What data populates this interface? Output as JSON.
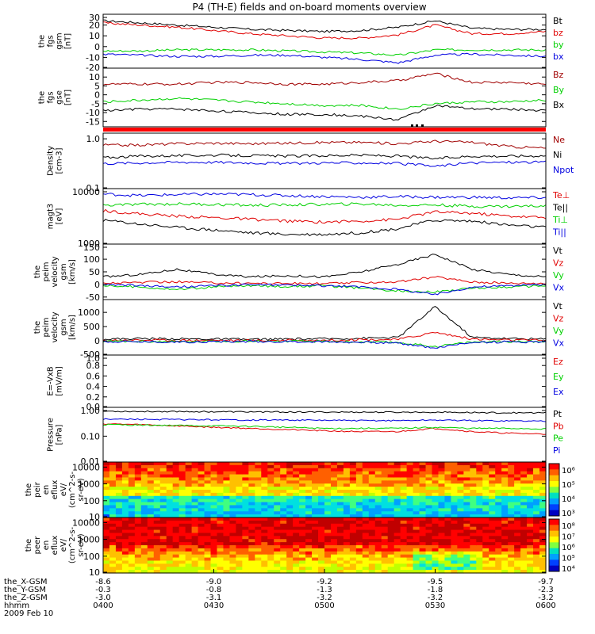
{
  "page": {
    "title": "P4 (TH-E) fields and on-board moments overview"
  },
  "colors": {
    "black": "#000000",
    "red": "#e00000",
    "green": "#00d000",
    "blue": "#0000e0",
    "darkred": "#a00000",
    "lightgreen": "#30e030",
    "panelBar": "#ff0000"
  },
  "chart_data": [
    {
      "type": "line",
      "panel": 1,
      "ylabel": [
        "the",
        "fgs",
        "gsm",
        "[nT]"
      ],
      "ylim": [
        -20,
        30
      ],
      "yticks": [
        "30",
        "20",
        "10",
        "0",
        "-10",
        "-20"
      ],
      "series": [
        {
          "name": "Bt",
          "color": "black",
          "x": [
            0,
            10,
            20,
            30,
            40,
            50,
            60,
            70,
            80,
            90,
            100,
            110,
            120
          ],
          "values": [
            24,
            22,
            20,
            18,
            16,
            15,
            14,
            15,
            18,
            24,
            17,
            16,
            16
          ]
        },
        {
          "name": "bz",
          "color": "red",
          "x": [
            0,
            10,
            20,
            30,
            40,
            50,
            60,
            70,
            80,
            90,
            100,
            110,
            120
          ],
          "values": [
            22,
            20,
            18,
            15,
            12,
            10,
            8,
            8,
            11,
            20,
            12,
            12,
            14
          ]
        },
        {
          "name": "by",
          "color": "green",
          "x": [
            0,
            10,
            20,
            30,
            40,
            50,
            60,
            70,
            80,
            90,
            100,
            110,
            120
          ],
          "values": [
            -4,
            -4,
            -3,
            -3,
            -3,
            -4,
            -5,
            -6,
            -8,
            -3,
            -3,
            -3,
            -3
          ]
        },
        {
          "name": "bx",
          "color": "blue",
          "x": [
            0,
            10,
            20,
            30,
            40,
            50,
            60,
            70,
            80,
            90,
            100,
            110,
            120
          ],
          "values": [
            -7,
            -8,
            -9,
            -9,
            -8,
            -8,
            -10,
            -12,
            -15,
            -8,
            -7,
            -8,
            -9
          ]
        }
      ]
    },
    {
      "type": "line",
      "panel": 2,
      "ylabel": [
        "the",
        "fgs",
        "gse",
        "[nT]"
      ],
      "ylim": [
        -18,
        15
      ],
      "yticks": [
        "10",
        "5",
        "0",
        "-5",
        "-10",
        "-15"
      ],
      "series": [
        {
          "name": "Bz",
          "color": "darkred",
          "x": [
            0,
            10,
            20,
            30,
            40,
            50,
            60,
            70,
            80,
            90,
            100,
            110,
            120
          ],
          "values": [
            6,
            6,
            6,
            7,
            7,
            6,
            6,
            7,
            8,
            12,
            7,
            7,
            6
          ]
        },
        {
          "name": "By",
          "color": "green",
          "x": [
            0,
            10,
            20,
            30,
            40,
            50,
            60,
            70,
            80,
            90,
            100,
            110,
            120
          ],
          "values": [
            -4,
            -3,
            -2,
            -3,
            -4,
            -5,
            -6,
            -6,
            -8,
            -5,
            -4,
            -4,
            -3
          ]
        },
        {
          "name": "Bx",
          "color": "black",
          "x": [
            0,
            10,
            20,
            30,
            40,
            50,
            60,
            70,
            80,
            90,
            100,
            110,
            120
          ],
          "values": [
            -9,
            -8,
            -8,
            -9,
            -10,
            -11,
            -11,
            -12,
            -14,
            -6,
            -8,
            -8,
            -9
          ]
        }
      ]
    },
    {
      "type": "line",
      "panel": 3,
      "ylabel": [
        "Density",
        "[cm-3]"
      ],
      "ylog": true,
      "ylim": [
        0.1,
        1.3
      ],
      "yticks": [
        "1.0",
        "0.1"
      ],
      "series": [
        {
          "name": "Ne",
          "color": "darkred",
          "x": [
            0,
            10,
            20,
            30,
            40,
            50,
            60,
            70,
            80,
            90,
            100,
            110,
            120
          ],
          "values": [
            0.75,
            0.75,
            0.8,
            0.82,
            0.8,
            0.82,
            0.85,
            0.85,
            0.8,
            0.9,
            0.85,
            0.7,
            0.65
          ]
        },
        {
          "name": "Ni",
          "color": "black",
          "x": [
            0,
            10,
            20,
            30,
            40,
            50,
            60,
            70,
            80,
            90,
            100,
            110,
            120
          ],
          "values": [
            0.42,
            0.45,
            0.46,
            0.47,
            0.46,
            0.45,
            0.46,
            0.47,
            0.45,
            0.4,
            0.45,
            0.45,
            0.46
          ]
        },
        {
          "name": "Npot",
          "color": "blue",
          "x": [
            0,
            10,
            20,
            30,
            40,
            50,
            60,
            70,
            80,
            90,
            100,
            110,
            120
          ],
          "values": [
            0.32,
            0.33,
            0.34,
            0.34,
            0.33,
            0.32,
            0.33,
            0.33,
            0.32,
            0.28,
            0.33,
            0.34,
            0.34
          ]
        }
      ]
    },
    {
      "type": "line",
      "panel": 4,
      "ylabel": [
        "magt3",
        "[eV]"
      ],
      "ylog": true,
      "ylim": [
        1000,
        10000
      ],
      "yticks": [
        "10000",
        "1000"
      ],
      "legend_entries": [
        "Te⊥",
        "Te||",
        "Ti⊥",
        "Ti||"
      ],
      "series": [
        {
          "name": "Ti||",
          "color": "blue",
          "x": [
            0,
            10,
            20,
            30,
            40,
            50,
            60,
            70,
            80,
            90,
            100,
            110,
            120
          ],
          "values": [
            8000,
            7500,
            7800,
            8000,
            7800,
            7500,
            7200,
            7000,
            7200,
            7000,
            7000,
            6800,
            6900
          ]
        },
        {
          "name": "Ti⊥",
          "color": "green",
          "x": [
            0,
            10,
            20,
            30,
            40,
            50,
            60,
            70,
            80,
            90,
            100,
            110,
            120
          ],
          "values": [
            5000,
            5200,
            5300,
            5200,
            5000,
            5100,
            5200,
            5300,
            5000,
            5100,
            4800,
            4800,
            4900
          ]
        },
        {
          "name": "Te⊥",
          "color": "red",
          "x": [
            0,
            10,
            20,
            30,
            40,
            50,
            60,
            70,
            80,
            90,
            100,
            110,
            120
          ],
          "values": [
            4000,
            3500,
            3200,
            3000,
            2800,
            2600,
            2500,
            2600,
            2800,
            3800,
            3600,
            3200,
            3000
          ]
        },
        {
          "name": "Te||",
          "color": "black",
          "x": [
            0,
            10,
            20,
            30,
            40,
            50,
            60,
            70,
            80,
            90,
            100,
            110,
            120
          ],
          "values": [
            2700,
            2300,
            2000,
            1800,
            1600,
            1500,
            1500,
            1600,
            1900,
            2700,
            2600,
            2200,
            2000
          ]
        }
      ]
    },
    {
      "type": "line",
      "panel": 5,
      "ylabel": [
        "the",
        "peim",
        "velocity",
        "gsm",
        "[km/s]"
      ],
      "ylim": [
        -60,
        160
      ],
      "yticks": [
        "150",
        "100",
        "50",
        "0",
        "-50"
      ],
      "series": [
        {
          "name": "Vt",
          "color": "black",
          "x": [
            0,
            10,
            20,
            30,
            40,
            50,
            60,
            70,
            80,
            90,
            100,
            110,
            120
          ],
          "values": [
            30,
            40,
            60,
            40,
            30,
            35,
            30,
            50,
            80,
            120,
            60,
            40,
            30
          ]
        },
        {
          "name": "Vz",
          "color": "red",
          "x": [
            0,
            10,
            20,
            30,
            40,
            50,
            60,
            70,
            80,
            90,
            100,
            110,
            120
          ],
          "values": [
            5,
            8,
            10,
            6,
            5,
            4,
            3,
            8,
            10,
            30,
            10,
            5,
            5
          ]
        },
        {
          "name": "Vy",
          "color": "green",
          "x": [
            0,
            10,
            20,
            30,
            40,
            50,
            60,
            70,
            80,
            90,
            100,
            110,
            120
          ],
          "values": [
            -5,
            -10,
            -20,
            -10,
            -5,
            -8,
            -5,
            -15,
            -25,
            -30,
            -15,
            -10,
            -5
          ]
        },
        {
          "name": "Vx",
          "color": "blue",
          "x": [
            0,
            10,
            20,
            30,
            40,
            50,
            60,
            70,
            80,
            90,
            100,
            110,
            120
          ],
          "values": [
            0,
            -5,
            -10,
            -5,
            0,
            -3,
            -5,
            -10,
            -20,
            -40,
            -10,
            -5,
            0
          ]
        }
      ]
    },
    {
      "type": "line",
      "panel": 6,
      "ylabel": [
        "the",
        "peim",
        "velocity",
        "gsm",
        "[km/s]"
      ],
      "ylim": [
        -500,
        1450
      ],
      "yticks": [
        "1000",
        "500",
        "0",
        "-500"
      ],
      "series": [
        {
          "name": "Vt",
          "color": "black",
          "x": [
            0,
            10,
            20,
            30,
            40,
            50,
            60,
            70,
            80,
            90,
            100,
            110,
            120
          ],
          "values": [
            60,
            80,
            70,
            60,
            50,
            60,
            70,
            90,
            120,
            1200,
            120,
            80,
            60
          ]
        },
        {
          "name": "Vz",
          "color": "red",
          "x": [
            0,
            10,
            20,
            30,
            40,
            50,
            60,
            70,
            80,
            90,
            100,
            110,
            120
          ],
          "values": [
            20,
            30,
            20,
            20,
            10,
            20,
            20,
            40,
            50,
            300,
            60,
            30,
            20
          ]
        },
        {
          "name": "Vy",
          "color": "green",
          "x": [
            0,
            10,
            20,
            30,
            40,
            50,
            60,
            70,
            80,
            90,
            100,
            110,
            120
          ],
          "values": [
            -10,
            -20,
            -30,
            -20,
            -10,
            -20,
            -20,
            -40,
            -60,
            -200,
            -40,
            -30,
            -20
          ]
        },
        {
          "name": "Vx",
          "color": "blue",
          "x": [
            0,
            10,
            20,
            30,
            40,
            50,
            60,
            70,
            80,
            90,
            100,
            110,
            120
          ],
          "values": [
            -20,
            -30,
            -40,
            -30,
            -20,
            -30,
            -30,
            -50,
            -80,
            -250,
            -50,
            -40,
            -30
          ]
        }
      ]
    },
    {
      "type": "line",
      "panel": 7,
      "ylabel": [
        "E=-VxB",
        "[mV/m]"
      ],
      "ylim": [
        0,
        1
      ],
      "yticks": [
        "1.0",
        "0.8",
        "0.6",
        "0.4",
        "0.2",
        "0.0"
      ],
      "series": [
        {
          "name": "Ez",
          "color": "red",
          "values": []
        },
        {
          "name": "Ey",
          "color": "green",
          "values": []
        },
        {
          "name": "Ex",
          "color": "blue",
          "values": []
        }
      ]
    },
    {
      "type": "line",
      "panel": 8,
      "ylabel": [
        "Pressure",
        "[nPa]"
      ],
      "ylog": true,
      "ylim": [
        0.01,
        1.3
      ],
      "yticks": [
        "1.00",
        "0.10",
        "0.01"
      ],
      "series": [
        {
          "name": "Pt",
          "color": "black",
          "x": [
            0,
            10,
            20,
            30,
            40,
            50,
            60,
            70,
            80,
            90,
            100,
            110,
            120
          ],
          "values": [
            0.92,
            0.9,
            0.9,
            0.88,
            0.87,
            0.86,
            0.85,
            0.85,
            0.84,
            0.85,
            0.82,
            0.8,
            0.8
          ]
        },
        {
          "name": "Pb",
          "color": "red",
          "x": [
            0,
            10,
            20,
            30,
            40,
            50,
            60,
            70,
            80,
            90,
            100,
            110,
            120
          ],
          "values": [
            0.3,
            0.28,
            0.25,
            0.22,
            0.2,
            0.18,
            0.16,
            0.15,
            0.15,
            0.2,
            0.15,
            0.13,
            0.12
          ]
        },
        {
          "name": "Pe",
          "color": "green",
          "x": [
            0,
            10,
            20,
            30,
            40,
            50,
            60,
            70,
            80,
            90,
            100,
            110,
            120
          ],
          "values": [
            0.28,
            0.27,
            0.26,
            0.25,
            0.24,
            0.22,
            0.2,
            0.2,
            0.2,
            0.22,
            0.2,
            0.2,
            0.19
          ]
        },
        {
          "name": "Pi",
          "color": "blue",
          "x": [
            0,
            10,
            20,
            30,
            40,
            50,
            60,
            70,
            80,
            90,
            100,
            110,
            120
          ],
          "values": [
            0.45,
            0.45,
            0.44,
            0.43,
            0.42,
            0.42,
            0.41,
            0.4,
            0.4,
            0.42,
            0.4,
            0.39,
            0.38
          ]
        }
      ]
    },
    {
      "type": "heatmap",
      "panel": 9,
      "ylabel": [
        "the",
        "peir",
        "en",
        "eflux",
        "eV/",
        "(cm^2-s-",
        "sr-eV)"
      ],
      "ylog": true,
      "ylim": [
        10,
        20000
      ],
      "yticks": [
        "10000",
        "1000",
        "100",
        "10"
      ],
      "colorbar_ticks": [
        "10⁶",
        "10⁵",
        "10⁴",
        "10³"
      ]
    },
    {
      "type": "heatmap",
      "panel": 10,
      "ylabel": [
        "the",
        "peer",
        "en",
        "eflux",
        "eV/",
        "(cm^2-s-",
        "sr-eV)"
      ],
      "ylog": true,
      "ylim": [
        10,
        20000
      ],
      "yticks": [
        "10000",
        "1000",
        "100",
        "10"
      ],
      "colorbar_ticks": [
        "10⁸",
        "10⁷",
        "10⁶",
        "10⁵",
        "10⁴"
      ]
    }
  ],
  "time_axis": {
    "rows": [
      {
        "label": "the_X-GSM",
        "values": [
          "-8.6",
          "-9.0",
          "-9.2",
          "-9.5",
          "-9.7"
        ]
      },
      {
        "label": "the_Y-GSM",
        "values": [
          "-0.3",
          "-0.8",
          "-1.3",
          "-1.8",
          "-2.3"
        ]
      },
      {
        "label": "the_Z-GSM",
        "values": [
          "-3.0",
          "-3.1",
          "-3.2",
          "-3.2",
          "-3.2"
        ]
      },
      {
        "label": "hhmm",
        "values": [
          "0400",
          "0430",
          "0500",
          "0530",
          "0600"
        ]
      }
    ],
    "date": "2009 Feb 10"
  }
}
